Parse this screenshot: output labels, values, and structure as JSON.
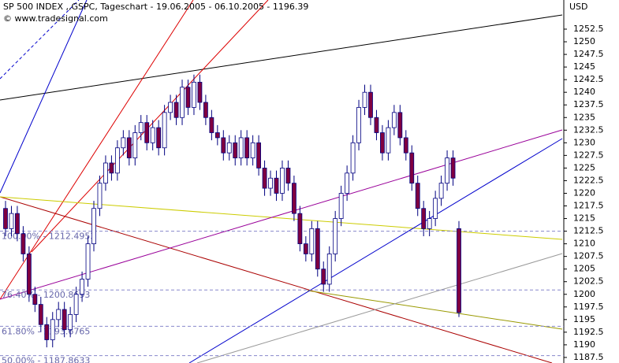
{
  "chart_data": {
    "type": "candlestick",
    "title": "SP 500 INDEX ,,GSPC, Tageschart - 19.06.2005 - 06.10.2005 - 1196.39",
    "subtitle": "© www.tradesignal.com",
    "y_axis_label": "USD",
    "ylim": [
      1186.4,
      1258.27
    ],
    "yticks": [
      1187.5,
      1190,
      1192.5,
      1195,
      1197.5,
      1200,
      1202.5,
      1205,
      1207.5,
      1210,
      1212.5,
      1215,
      1217.5,
      1220,
      1222.5,
      1225,
      1227.5,
      1230,
      1232.5,
      1235,
      1237.5,
      1240,
      1242.5,
      1245,
      1247.5,
      1250,
      1252.5
    ],
    "up_color": "#ffffff",
    "down_color": "#800040",
    "outline_color": "#000080",
    "fib_color": "#8888cc",
    "fib_levels": [
      {
        "value": 1212.4953,
        "label": "100.00% - 1212.4953"
      },
      {
        "value": 1200.8693,
        "label": "76.40% - 1200.8693"
      },
      {
        "value": 1193.6765,
        "label": "61.80% - 1193.6765"
      },
      {
        "value": 1187.8633,
        "label": "50.00% - 1187.8633"
      }
    ],
    "open": [
      1217,
      1213,
      1216,
      1212,
      1208,
      1200,
      1198,
      1194,
      1191,
      1195,
      1197,
      1193,
      1196,
      1200,
      1203,
      1210,
      1217,
      1222,
      1226,
      1224,
      1229,
      1231,
      1227,
      1232,
      1234,
      1230,
      1233,
      1229,
      1236,
      1238,
      1235,
      1241,
      1237,
      1242,
      1238,
      1235,
      1232,
      1231,
      1228,
      1230,
      1227,
      1231,
      1227,
      1230,
      1225,
      1221,
      1223,
      1220,
      1225,
      1222,
      1216,
      1210,
      1208,
      1213,
      1205,
      1202,
      1208,
      1215,
      1220,
      1224,
      1230,
      1237,
      1240,
      1235,
      1232,
      1228,
      1233,
      1236,
      1231,
      1228,
      1222,
      1217,
      1213,
      1215,
      1219,
      1222,
      1227,
      1213
    ],
    "high": [
      1218.5,
      1217.5,
      1217.5,
      1213.5,
      1209.5,
      1201.5,
      1199.5,
      1195.5,
      1196.5,
      1198.5,
      1198.5,
      1197.5,
      1201.5,
      1204.5,
      1211.5,
      1218.5,
      1223.5,
      1227.5,
      1227.5,
      1230.5,
      1232.5,
      1232.5,
      1233.5,
      1235.5,
      1235.5,
      1234.5,
      1234.5,
      1237.5,
      1239.5,
      1239.5,
      1242.5,
      1242.5,
      1243.5,
      1243.5,
      1239.5,
      1236.5,
      1233.5,
      1232.5,
      1231.5,
      1231.5,
      1232.5,
      1232.5,
      1231.5,
      1231.5,
      1226.5,
      1224.5,
      1224.5,
      1226.5,
      1226.5,
      1223.5,
      1217.5,
      1211.5,
      1214.5,
      1214.5,
      1206.5,
      1209.5,
      1216.5,
      1221.5,
      1225.5,
      1231.5,
      1238.5,
      1241.5,
      1241.5,
      1236.5,
      1233.5,
      1234.5,
      1237.5,
      1237.5,
      1232.5,
      1229.5,
      1223.5,
      1218.5,
      1216.5,
      1220.5,
      1223.5,
      1228.5,
      1228.5,
      1214.5
    ],
    "low": [
      1211.5,
      1211.5,
      1210.5,
      1206.5,
      1198.5,
      1196.5,
      1192.5,
      1189.5,
      1189.5,
      1193.5,
      1191.5,
      1191.5,
      1194.5,
      1198.5,
      1201.5,
      1208.5,
      1215.5,
      1220.5,
      1222.5,
      1222.5,
      1227.5,
      1225.5,
      1225.5,
      1230.5,
      1228.5,
      1228.5,
      1227.5,
      1227.5,
      1234.5,
      1233.5,
      1233.5,
      1235.5,
      1235.5,
      1236.5,
      1233.5,
      1230.5,
      1229.5,
      1226.5,
      1226.5,
      1225.5,
      1225.5,
      1225.5,
      1225.5,
      1223.5,
      1219.5,
      1219.5,
      1218.5,
      1218.5,
      1220.5,
      1214.5,
      1208.5,
      1206.5,
      1206.5,
      1203.5,
      1200.5,
      1200.5,
      1206.5,
      1213.5,
      1218.5,
      1222.5,
      1228.5,
      1235.5,
      1233.5,
      1230.5,
      1226.5,
      1226.5,
      1231.5,
      1229.5,
      1226.5,
      1220.5,
      1215.5,
      1211.5,
      1211.5,
      1213.5,
      1217.5,
      1220.5,
      1221.5,
      1195.5
    ],
    "close": [
      1213,
      1216,
      1212,
      1208,
      1200,
      1198,
      1194,
      1191,
      1195,
      1197,
      1193,
      1196,
      1200,
      1203,
      1210,
      1217,
      1222,
      1226,
      1224,
      1229,
      1231,
      1227,
      1232,
      1234,
      1230,
      1233,
      1229,
      1236,
      1238,
      1235,
      1241,
      1237,
      1242,
      1238,
      1235,
      1232,
      1231,
      1228,
      1230,
      1227,
      1231,
      1227,
      1230,
      1225,
      1221,
      1223,
      1220,
      1225,
      1222,
      1216,
      1210,
      1208,
      1213,
      1205,
      1202,
      1208,
      1215,
      1220,
      1224,
      1230,
      1237,
      1240,
      1235,
      1232,
      1228,
      1233,
      1236,
      1231,
      1228,
      1222,
      1217,
      1213,
      1215,
      1219,
      1222,
      1227,
      1223,
      1196.39
    ]
  }
}
